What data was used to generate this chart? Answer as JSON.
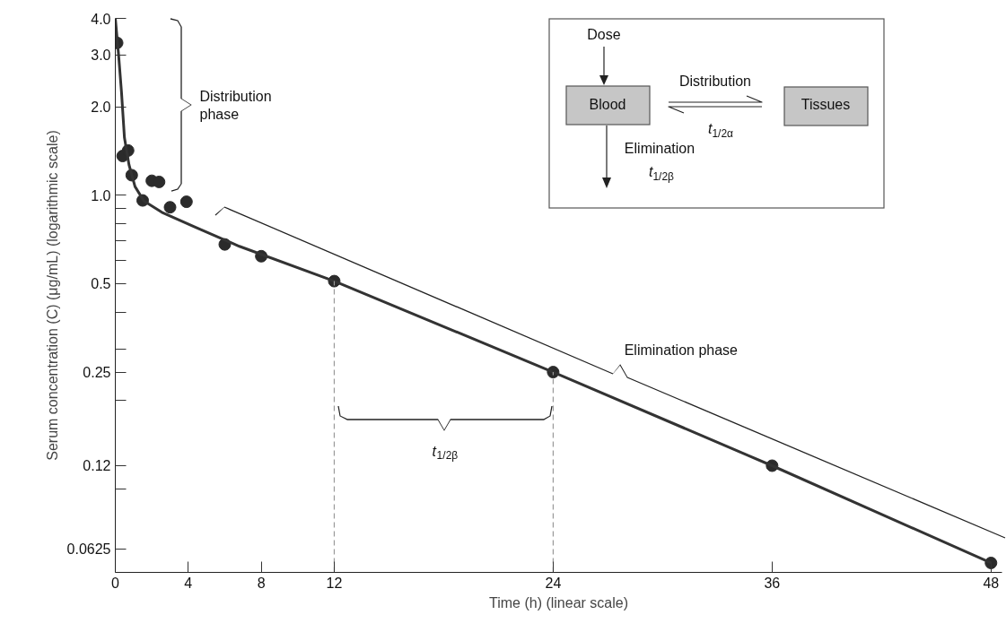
{
  "chart_data": {
    "type": "scatter",
    "xlabel": "Time (h) (linear scale)",
    "ylabel": "Serum concentration (C) (μg/mL) (logarithmic scale)",
    "log": "y",
    "xlim": [
      0,
      48.6
    ],
    "ylim": [
      0.052,
      4.0
    ],
    "xticks": [
      0,
      4,
      8,
      12,
      24,
      36,
      48
    ],
    "yticks": [
      0.0625,
      {
        "value": 0.1,
        "label": null
      },
      0.12,
      {
        "value": 0.2,
        "label": null
      },
      0.25,
      {
        "value": 0.3,
        "label": null
      },
      {
        "value": 0.4,
        "label": null
      },
      0.5,
      {
        "value": 0.6,
        "label": null
      },
      {
        "value": 0.7,
        "label": null
      },
      {
        "value": 0.8,
        "label": null
      },
      {
        "value": 0.9,
        "label": null
      },
      {
        "value": 1,
        "label": "1.0"
      },
      {
        "value": 2,
        "label": "2.0"
      },
      {
        "value": 3,
        "label": "3.0"
      },
      {
        "value": 4,
        "label": "4.0"
      }
    ],
    "grid": false,
    "marker": "circle",
    "series": [
      {
        "color": "#2b2b2b",
        "x": [
          0.1,
          0.4,
          0.7,
          0.9,
          1.5,
          2,
          2.4,
          3,
          3.9,
          6,
          8,
          12,
          24,
          36,
          48
        ],
        "values": [
          3.3,
          1.36,
          1.42,
          1.17,
          0.96,
          1.12,
          1.11,
          0.91,
          0.95,
          0.68,
          0.62,
          0.51,
          0.25,
          0.12,
          0.056
        ]
      },
      {
        "type": "line",
        "color": "#333333",
        "marker": "none",
        "line_style": "solid",
        "x": [
          0,
          0.18,
          0.34,
          0.5,
          0.75,
          1.08,
          1.57,
          2.55,
          4.35,
          6.8,
          12,
          24,
          36,
          48
        ],
        "values": [
          4.0,
          3.0,
          2.24,
          1.57,
          1.27,
          1.07,
          0.955,
          0.875,
          0.78,
          0.67,
          0.51,
          0.25,
          0.12,
          0.056
        ]
      }
    ],
    "ref_lines": [
      {
        "axis": "x",
        "value": 12,
        "line_style": "dashed",
        "color": "#999999"
      },
      {
        "axis": "x",
        "value": 24,
        "line_style": "dashed",
        "color": "#999999"
      }
    ],
    "annotations": [
      "Distribution\nphase",
      "Elimination phase",
      "t$_{1/2β}$",
      "Dose",
      "Blood",
      "Distribution",
      "Tissues",
      "t$_{1/2α}$",
      "Elimination",
      "t$_{1/2β}$"
    ]
  }
}
